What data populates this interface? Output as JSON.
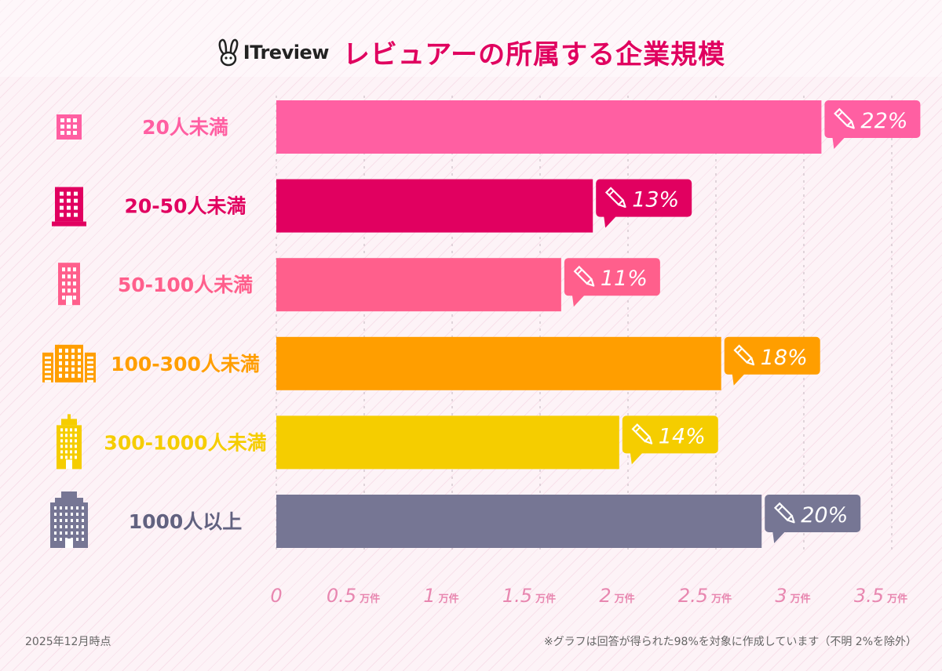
{
  "header": {
    "logo_text": "ITreview",
    "title": "レビュアーの所属する企業規模"
  },
  "colors": {
    "title": "#e0005f",
    "axis": "#e887b0",
    "gridline": "#d7c9d1"
  },
  "chart_data": {
    "type": "bar",
    "orientation": "horizontal",
    "title": "レビュアーの所属する企業規模",
    "xlabel": "",
    "ylabel": "",
    "xlim": [
      0,
      3.5
    ],
    "unit": "万件",
    "ticks": [
      0,
      0.5,
      1,
      1.5,
      2,
      2.5,
      3,
      3.5
    ],
    "tick_labels": [
      "0",
      "0.5",
      "1",
      "1.5",
      "2",
      "2.5",
      "3",
      "3.5"
    ],
    "grid": true,
    "categories": [
      "20人未満",
      "20-50人未満",
      "50-100人未満",
      "100-300人未満",
      "300-1000人未満",
      "1000人以上"
    ],
    "values": [
      3.1,
      1.8,
      1.62,
      2.53,
      1.95,
      2.76
    ],
    "percent_labels": [
      "22%",
      "13%",
      "11%",
      "18%",
      "14%",
      "20%"
    ],
    "bar_colors": [
      "#ff5fa2",
      "#e10060",
      "#ff5f8c",
      "#ff9e00",
      "#f5cd00",
      "#767694"
    ],
    "label_colors": [
      "#ff5fa2",
      "#e10060",
      "#ff5f8c",
      "#ff9e00",
      "#f5cd00",
      "#626280"
    ],
    "icons": [
      "small-building-icon",
      "building-icon",
      "office-building-icon",
      "wide-building-icon",
      "tower-building-icon",
      "skyscraper-icon"
    ]
  },
  "footnotes": {
    "date": "2025年12月時点",
    "note": "※グラフは回答が得られた98%を対象に作成しています（不明 2%を除外）"
  }
}
